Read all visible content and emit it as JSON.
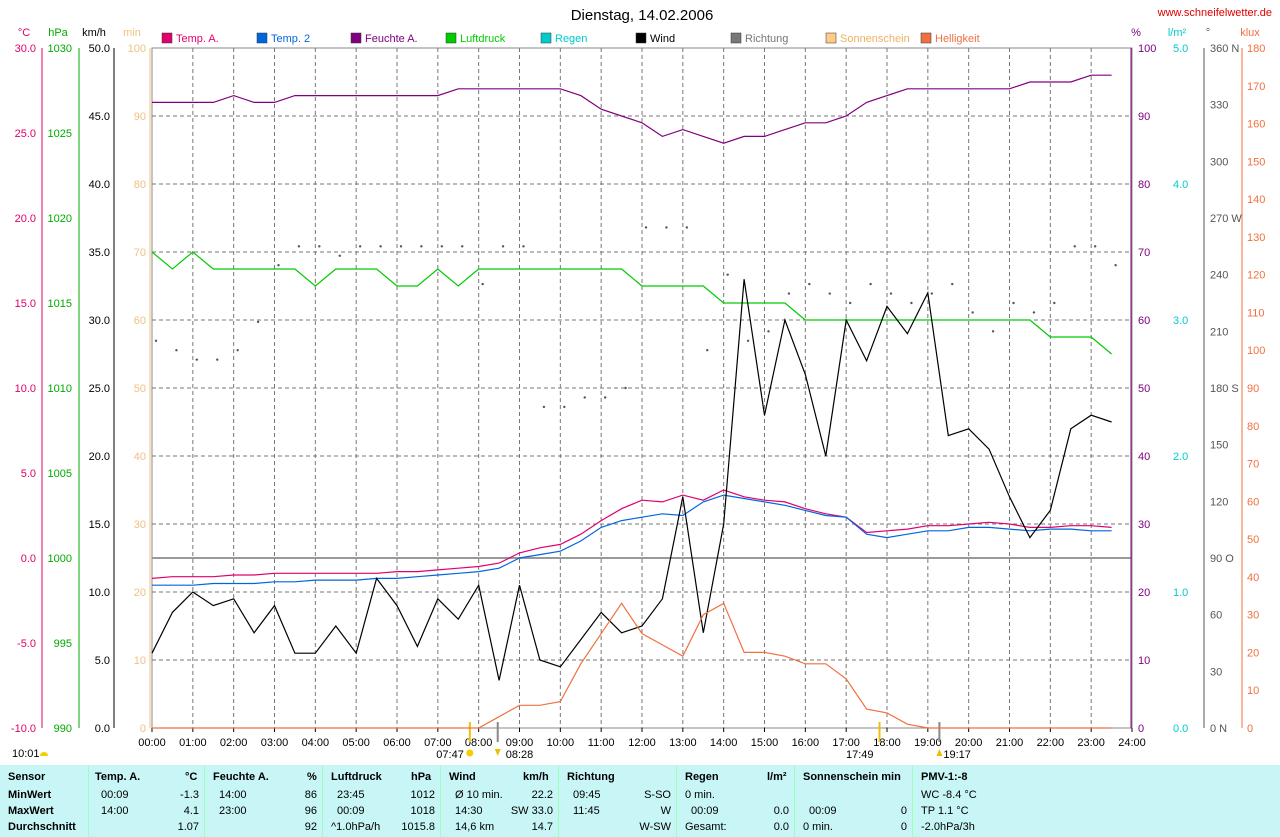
{
  "title": "Dienstag, 14.02.2006",
  "website": "www.schneifelwetter.de",
  "colors": {
    "temp_a": "#e0006e",
    "temp2": "#0066dd",
    "feuchte": "#800080",
    "luftdruck": "#00cc00",
    "regen": "#00cccc",
    "wind": "#000000",
    "richtung": "#555555",
    "sonne": "#ffcc88",
    "helligkeit": "#f07040",
    "grid": "#888888"
  },
  "legend": [
    {
      "label": "Temp. A.",
      "color": "#e0006e"
    },
    {
      "label": "Temp. 2",
      "color": "#0066dd"
    },
    {
      "label": "Feuchte A.",
      "color": "#800080"
    },
    {
      "label": "Luftdruck",
      "color": "#00cc00"
    },
    {
      "label": "Regen",
      "color": "#00cccc"
    },
    {
      "label": "Wind",
      "color": "#000000"
    },
    {
      "label": "Richtung",
      "color": "#777777"
    },
    {
      "label": "Sonnenschein",
      "color": "#ffcc88"
    },
    {
      "label": "Helligkeit",
      "color": "#f07040"
    }
  ],
  "axes": {
    "temp": {
      "unit": "°C",
      "ticks": [
        "30.0",
        "25.0",
        "20.0",
        "15.0",
        "10.0",
        "5.0",
        "0.0",
        "-5.0",
        "-10.0"
      ],
      "color": "#e0006e"
    },
    "hpa": {
      "unit": "hPa",
      "ticks": [
        "1030",
        "1025",
        "1020",
        "1015",
        "1010",
        "1005",
        "1000",
        "995",
        "990"
      ],
      "color": "#00aa00"
    },
    "kmh": {
      "unit": "km/h",
      "ticks": [
        "50.0",
        "45.0",
        "40.0",
        "35.0",
        "30.0",
        "25.0",
        "20.0",
        "15.0",
        "10.0",
        "5.0",
        "0.0"
      ],
      "color": "#000000"
    },
    "min": {
      "unit": "min",
      "ticks": [
        "100",
        "90",
        "80",
        "70",
        "60",
        "50",
        "40",
        "30",
        "20",
        "10",
        "0"
      ],
      "color": "#f0c080"
    },
    "pct": {
      "unit": "%",
      "ticks": [
        "100",
        "90",
        "80",
        "70",
        "60",
        "50",
        "40",
        "30",
        "20",
        "10",
        "0"
      ],
      "color": "#800080"
    },
    "lm2": {
      "unit": "l/m²",
      "ticks": [
        "5.0",
        "4.0",
        "3.0",
        "2.0",
        "1.0",
        "0.0"
      ],
      "color": "#00cccc"
    },
    "deg": {
      "unit": "°",
      "ticks": [
        "360 N",
        "330",
        "300",
        "270 W",
        "240",
        "210",
        "180 S",
        "150",
        "120",
        "90 O",
        "60",
        "30",
        "0 N"
      ],
      "color": "#555555"
    },
    "klux": {
      "unit": "klux",
      "ticks": [
        "180",
        "170",
        "160",
        "150",
        "140",
        "130",
        "120",
        "110",
        "100",
        "90",
        "80",
        "70",
        "60",
        "50",
        "40",
        "30",
        "20",
        "10",
        "0"
      ],
      "color": "#f07040"
    },
    "x": {
      "ticks": [
        "00:00",
        "01:00",
        "02:00",
        "03:00",
        "04:00",
        "05:00",
        "06:00",
        "07:00",
        "08:00",
        "09:00",
        "10:00",
        "11:00",
        "12:00",
        "13:00",
        "14:00",
        "15:00",
        "16:00",
        "17:00",
        "18:00",
        "19:00",
        "20:00",
        "21:00",
        "22:00",
        "23:00",
        "24:00"
      ]
    }
  },
  "sun_markers": {
    "sunrise": "07:47",
    "sunset": "17:49",
    "moonset": "08:28",
    "moonrise": "19:17",
    "current_time": "10:01"
  },
  "chart_data": {
    "type": "line",
    "title": "Dienstag, 14.02.2006",
    "x_hours": [
      0,
      0.5,
      1,
      1.5,
      2,
      2.5,
      3,
      3.5,
      4,
      4.5,
      5,
      5.5,
      6,
      6.5,
      7,
      7.5,
      8,
      8.5,
      9,
      9.5,
      10,
      10.5,
      11,
      11.5,
      12,
      12.5,
      13,
      13.5,
      14,
      14.5,
      15,
      15.5,
      16,
      16.5,
      17,
      17.5,
      18,
      18.5,
      19,
      19.5,
      20,
      20.5,
      21,
      21.5,
      22,
      22.5,
      23,
      23.5
    ],
    "series": [
      {
        "name": "Temp. A.",
        "unit": "°C",
        "values": [
          -1.2,
          -1.1,
          -1.1,
          -1.1,
          -1.0,
          -1.0,
          -0.9,
          -0.9,
          -0.9,
          -0.9,
          -0.9,
          -0.9,
          -0.8,
          -0.8,
          -0.7,
          -0.6,
          -0.5,
          -0.3,
          0.3,
          0.6,
          0.8,
          1.4,
          2.2,
          2.9,
          3.4,
          3.3,
          3.7,
          3.4,
          4.0,
          3.6,
          3.4,
          3.3,
          2.9,
          2.6,
          2.4,
          1.5,
          1.6,
          1.7,
          1.9,
          1.9,
          2.0,
          2.1,
          2.0,
          1.8,
          1.8,
          1.9,
          1.9,
          1.8
        ]
      },
      {
        "name": "Temp. 2",
        "unit": "°C",
        "values": [
          -1.6,
          -1.6,
          -1.6,
          -1.5,
          -1.5,
          -1.5,
          -1.4,
          -1.4,
          -1.3,
          -1.3,
          -1.3,
          -1.2,
          -1.2,
          -1.1,
          -1.0,
          -0.9,
          -0.8,
          -0.6,
          0.0,
          0.2,
          0.4,
          1.0,
          1.8,
          2.2,
          2.4,
          2.6,
          2.5,
          3.3,
          3.7,
          3.5,
          3.3,
          3.1,
          2.8,
          2.5,
          2.4,
          1.4,
          1.2,
          1.4,
          1.6,
          1.6,
          1.8,
          1.8,
          1.7,
          1.6,
          1.7,
          1.7,
          1.6,
          1.6
        ]
      },
      {
        "name": "Feuchte A.",
        "unit": "%",
        "values": [
          92,
          92,
          92,
          92,
          93,
          92,
          92,
          93,
          93,
          93,
          93,
          93,
          93,
          93,
          93,
          94,
          94,
          94,
          94,
          94,
          94,
          93,
          91,
          90,
          89,
          87,
          88,
          87,
          86,
          87,
          87,
          88,
          89,
          89,
          90,
          92,
          93,
          94,
          94,
          94,
          94,
          94,
          94,
          95,
          95,
          95,
          96,
          96
        ]
      },
      {
        "name": "Luftdruck",
        "unit": "hPa",
        "values": [
          1018,
          1017,
          1018,
          1017,
          1017,
          1017,
          1017,
          1017,
          1016,
          1017,
          1017,
          1017,
          1016,
          1016,
          1017,
          1016,
          1017,
          1017,
          1017,
          1017,
          1017,
          1017,
          1017,
          1017,
          1016,
          1016,
          1016,
          1016,
          1015,
          1015,
          1015,
          1015,
          1014,
          1014,
          1014,
          1014,
          1014,
          1014,
          1014,
          1014,
          1014,
          1014,
          1014,
          1014,
          1013,
          1013,
          1013,
          1012
        ]
      },
      {
        "name": "Wind",
        "unit": "km/h",
        "values": [
          5.5,
          8.5,
          10.0,
          9.0,
          9.5,
          7.0,
          9.0,
          5.5,
          5.5,
          7.5,
          5.5,
          11.0,
          9.0,
          6.0,
          9.5,
          8.0,
          10.5,
          3.5,
          10.5,
          5.0,
          4.5,
          6.5,
          8.5,
          7.0,
          7.5,
          9.5,
          17.0,
          7.0,
          15.0,
          33.0,
          23.0,
          30.0,
          26.0,
          20.0,
          30.0,
          27.0,
          31.0,
          29.0,
          32.0,
          21.5,
          22.0,
          20.5,
          17.0,
          14.0,
          16.0,
          22.0,
          23.0,
          22.5
        ]
      },
      {
        "name": "Helligkeit",
        "unit": "klux",
        "values": [
          0,
          0,
          0,
          0,
          0,
          0,
          0,
          0,
          0,
          0,
          0,
          0,
          0,
          0,
          0,
          0,
          0,
          3,
          6,
          6,
          7,
          17,
          25,
          33,
          25,
          22,
          19,
          30,
          33,
          20,
          20,
          19,
          17,
          17,
          13,
          5,
          4,
          1,
          0,
          0,
          0,
          0,
          0,
          0,
          0,
          0,
          0,
          0
        ]
      }
    ],
    "richtung_deg": [
      205,
      200,
      195,
      195,
      200,
      215,
      245,
      255,
      255,
      250,
      255,
      255,
      255,
      255,
      255,
      255,
      235,
      255,
      255,
      170,
      170,
      175,
      175,
      180,
      265,
      265,
      265,
      200,
      240,
      205,
      210,
      230,
      235,
      230,
      225,
      235,
      230,
      225,
      230,
      235,
      220,
      210,
      225,
      220,
      225,
      255,
      255,
      245
    ]
  },
  "summary": {
    "headers": {
      "sensor": "Sensor",
      "temp": "Temp. A.",
      "temp_unit": "°C",
      "feuchte": "Feuchte A.",
      "feuchte_unit": "%",
      "luft": "Luftdruck",
      "luft_unit": "hPa",
      "wind": "Wind",
      "wind_unit": "km/h",
      "richtung": "Richtung",
      "regen": "Regen",
      "regen_unit": "l/m²",
      "sonne": "Sonnenschein min",
      "pmv": "PMV-1:-8"
    },
    "rows": {
      "min": "MinWert",
      "max": "MaxWert",
      "avg": "Durchschnitt"
    },
    "temp": {
      "min_time": "00:09",
      "min_val": "-1.3",
      "max_time": "14:00",
      "max_val": "4.1",
      "avg_val": "1.07"
    },
    "feuchte": {
      "min_time": "14:00",
      "min_val": "86",
      "max_time": "23:00",
      "max_val": "96",
      "avg_val": "92"
    },
    "luft": {
      "min_time": "23:45",
      "min_val": "1012",
      "max_time": "00:09",
      "max_val": "1018",
      "avg_label": "^1.0hPa/h",
      "avg_val": "1015.8"
    },
    "wind": {
      "r1_label": "Ø 10 min.",
      "r1_val": "22.2",
      "r2_time": "14:30",
      "r2_dir": "SW 33.0",
      "r3_label": "14,6 km",
      "r3_val": "14.7"
    },
    "richtung": {
      "r1_time": "09:45",
      "r1_dir": "S-SO",
      "r2_time": "11:45",
      "r2_dir": "W",
      "r3_dir": "W-SW"
    },
    "regen": {
      "r1": "0 min.",
      "r2_time": "00:09",
      "r2_val": "0.0",
      "r3_label": "Gesamt:",
      "r3_val": "0.0"
    },
    "sonne": {
      "r2_time": "00:09",
      "r2_val": "0",
      "r3_label": "0 min.",
      "r3_val": "0"
    },
    "pmv": {
      "r1": "WC -8.4 °C",
      "r2": "TP 1.1 °C",
      "r3": "-2.0hPa/3h"
    }
  }
}
